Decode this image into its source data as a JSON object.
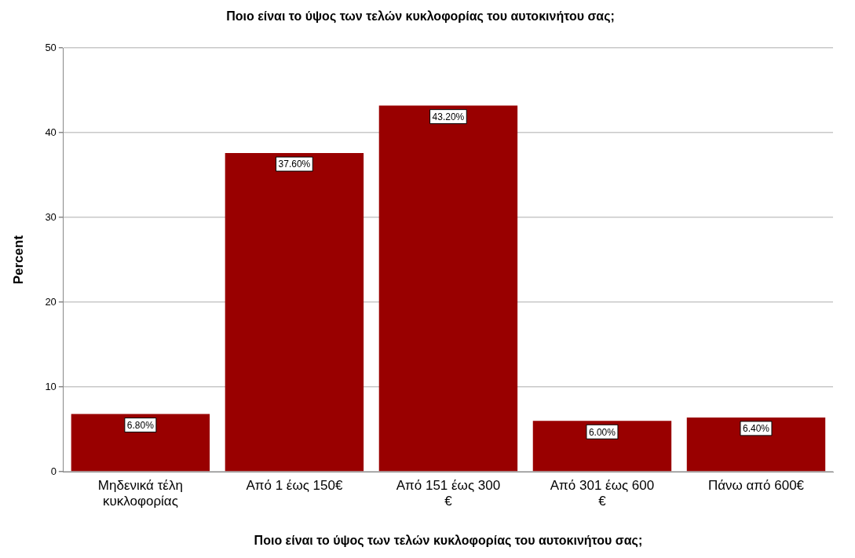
{
  "chart_data": {
    "type": "bar",
    "title": "Ποιο είναι το ύψος των τελών κυκλοφορίας του αυτοκινήτου σας;",
    "xlabel": "Ποιο είναι το ύψος των τελών κυκλοφορίας του αυτοκινήτου σας;",
    "ylabel": "Percent",
    "categories": [
      "Μηδενικά τέλη κυκλοφορίας",
      "Από 1 έως 150€",
      "Από 151 έως 300 €",
      "Από 301 έως 600 €",
      "Πάνω από 600€"
    ],
    "values": [
      6.8,
      37.6,
      43.2,
      6.0,
      6.4
    ],
    "value_labels": [
      "6.80%",
      "37.60%",
      "43.20%",
      "6.00%",
      "6.40%"
    ],
    "color": "#990000",
    "ylim": [
      0,
      50
    ],
    "yticks": [
      0,
      10,
      20,
      30,
      40,
      50
    ],
    "grid": "y",
    "legend": false
  }
}
